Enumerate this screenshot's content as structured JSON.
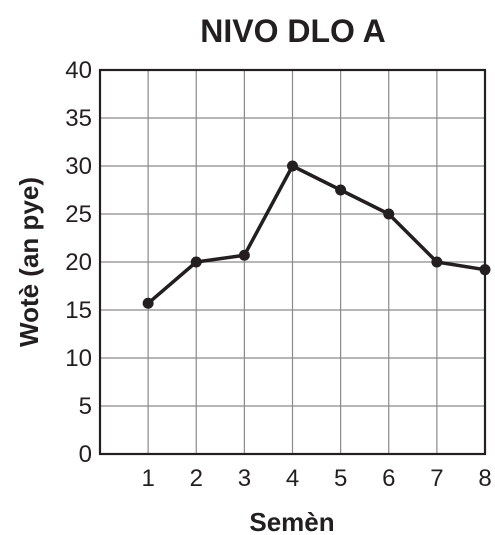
{
  "chart_data": {
    "type": "line",
    "title": "NIVO DLO A",
    "xlabel": "Semèn",
    "ylabel": "Wotè (an pye)",
    "x": [
      1,
      2,
      3,
      4,
      5,
      6,
      7,
      8
    ],
    "series": [
      {
        "values": [
          15.7,
          20,
          20.7,
          30,
          27.5,
          25,
          20,
          19.2
        ]
      }
    ],
    "xlim": [
      0,
      8
    ],
    "ylim": [
      0,
      40
    ],
    "xticks": [
      "1",
      "2",
      "3",
      "4",
      "5",
      "6",
      "7",
      "8"
    ],
    "yticks": [
      "0",
      "5",
      "10",
      "15",
      "20",
      "25",
      "30",
      "35",
      "40"
    ],
    "grid": true,
    "legend": "none",
    "colors": {
      "line": "#231f20",
      "grid": "#8a8a8a"
    }
  }
}
